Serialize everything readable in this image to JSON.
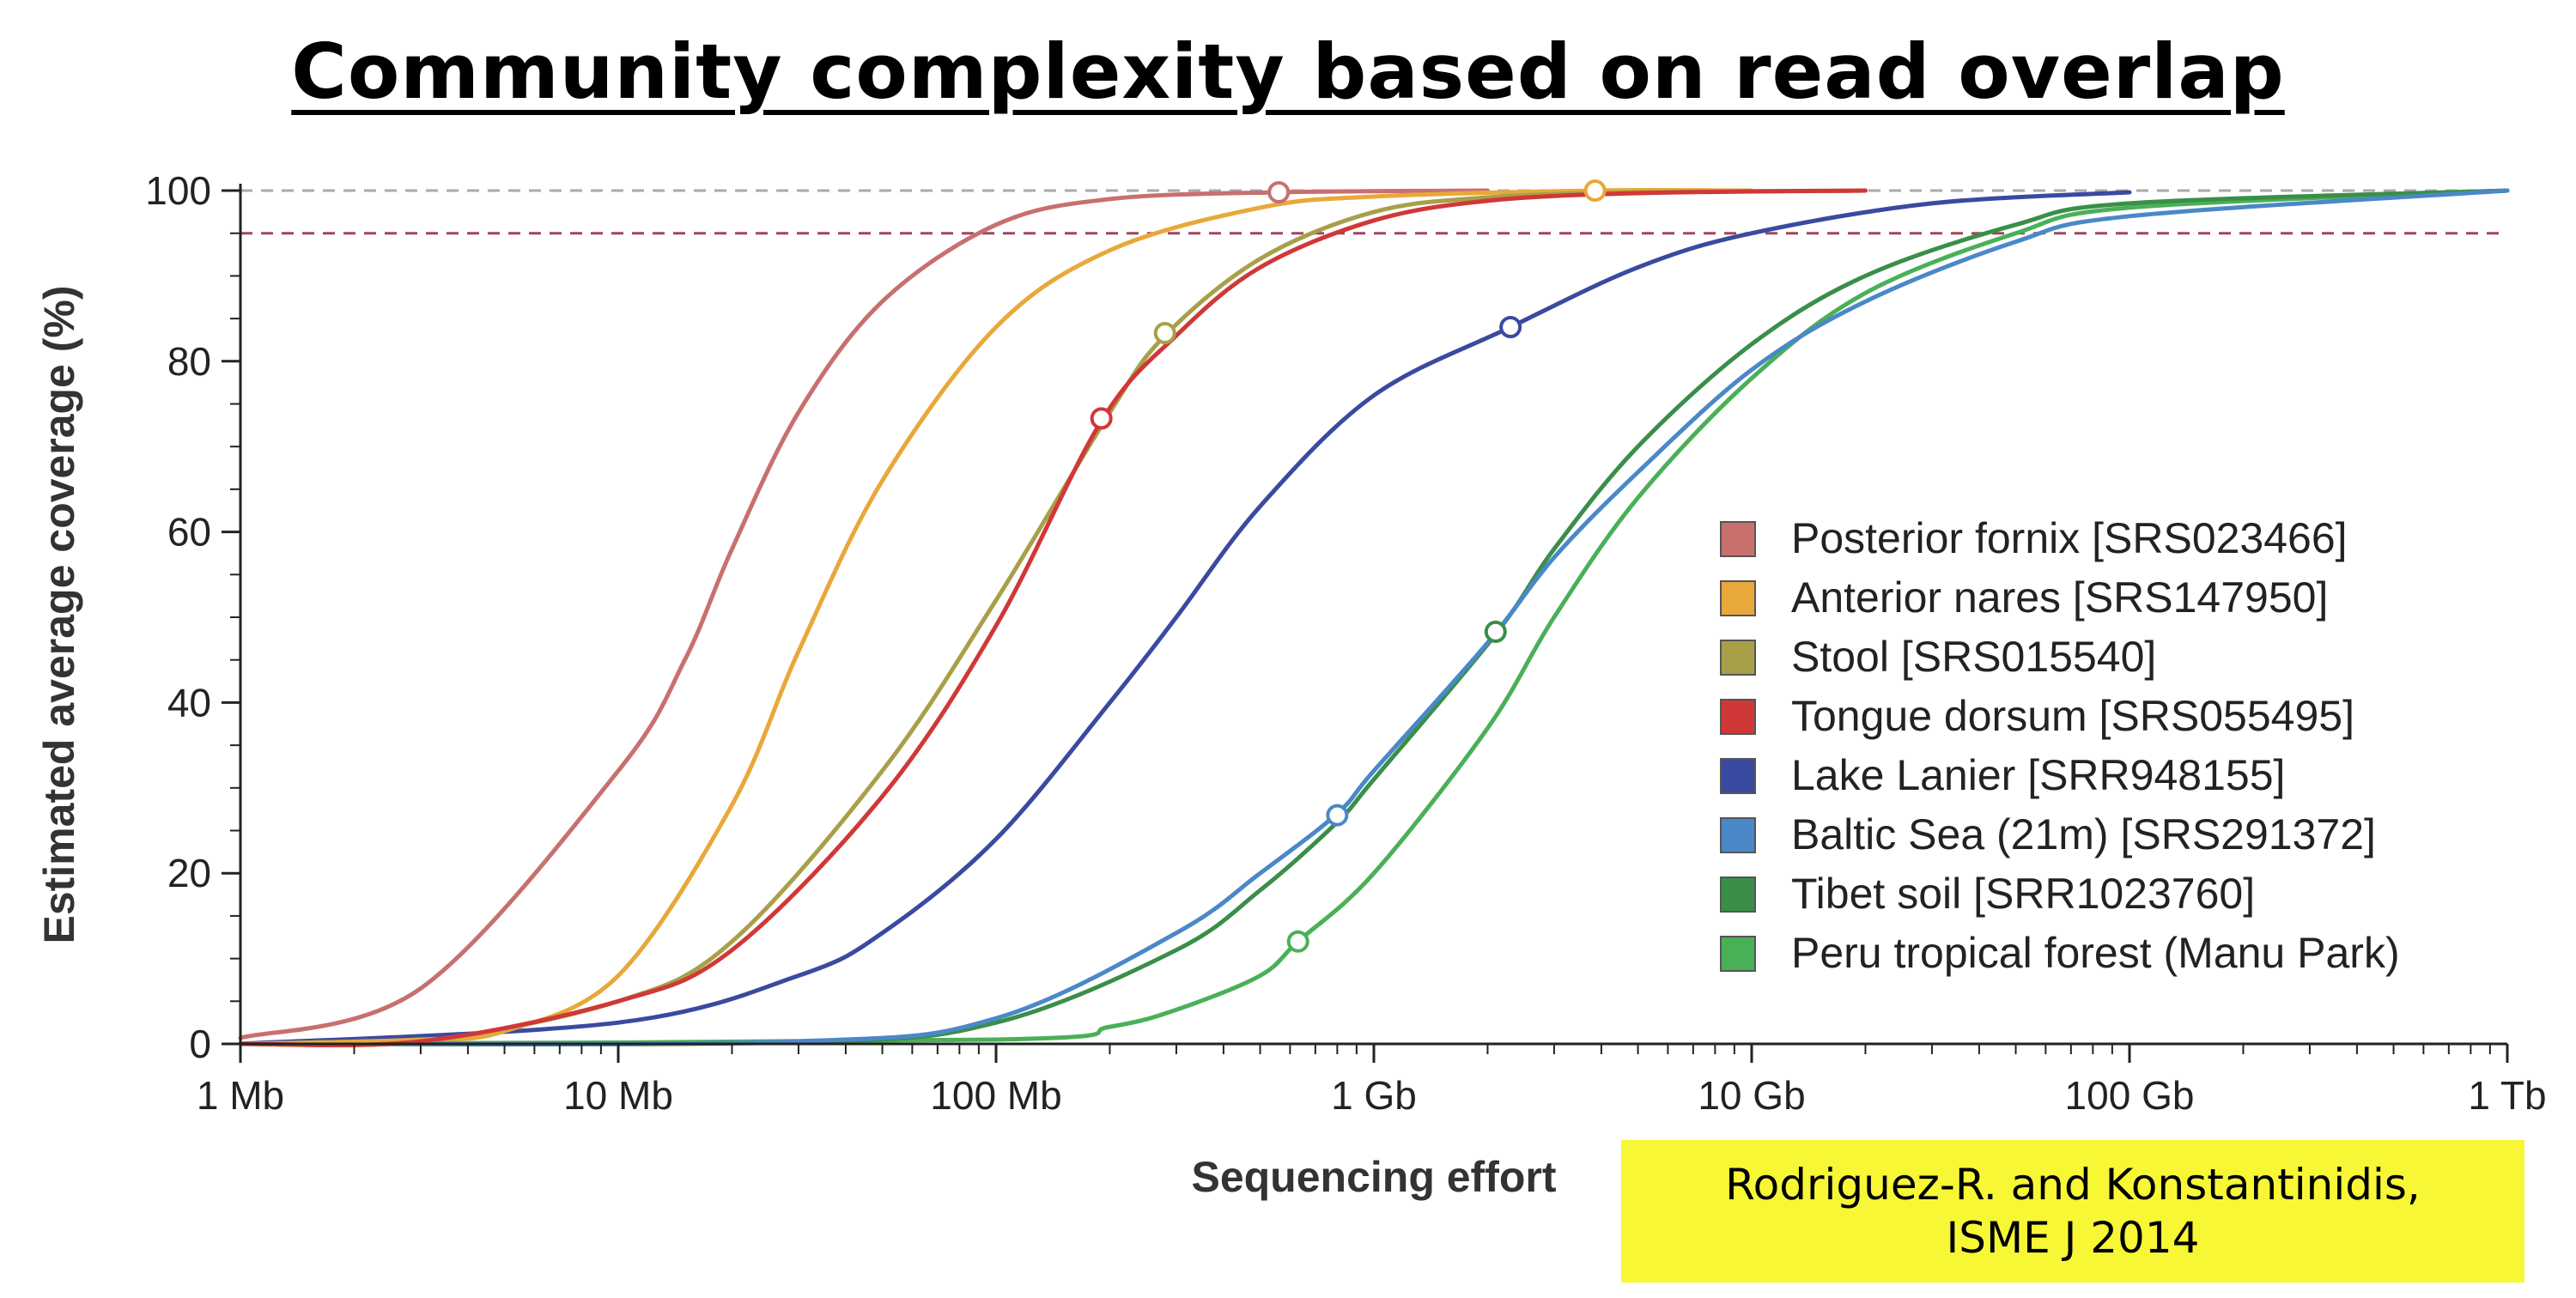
{
  "chart_data": {
    "type": "line",
    "title": "Community complexity based on read overlap",
    "xlabel": "Sequencing effort",
    "ylabel": "Estimated average coverage (%)",
    "x_scale": "log",
    "xlim_mb": [
      1,
      1000000
    ],
    "ylim": [
      0,
      100
    ],
    "x_ticks": [
      {
        "value_mb": 1,
        "label": "1 Mb"
      },
      {
        "value_mb": 10,
        "label": "10 Mb"
      },
      {
        "value_mb": 100,
        "label": "100 Mb"
      },
      {
        "value_mb": 1000,
        "label": "1 Gb"
      },
      {
        "value_mb": 10000,
        "label": "10 Gb"
      },
      {
        "value_mb": 100000,
        "label": "100 Gb"
      },
      {
        "value_mb": 1000000,
        "label": "1 Tb"
      }
    ],
    "y_ticks": [
      0,
      20,
      40,
      60,
      80,
      100
    ],
    "reference_lines": [
      {
        "y": 100,
        "color": "#aaaaaa",
        "style": "dashed"
      },
      {
        "y": 95,
        "color": "#a0465a",
        "style": "dashed"
      }
    ],
    "legend_position": "right",
    "series": [
      {
        "name": "Posterior fornix [SRS023466]",
        "color": "#c8706e",
        "x_mb": [
          1,
          3,
          10,
          15,
          20,
          30,
          50,
          100,
          200,
          560,
          2000
        ],
        "y": [
          0.7,
          6.5,
          32,
          45,
          58,
          74,
          87,
          96,
          99,
          99.8,
          100
        ],
        "markers": [
          {
            "x_mb": 560,
            "y": 99.8
          }
        ]
      },
      {
        "name": "Anterior nares [SRS147950]",
        "color": "#e8a83a",
        "x_mb": [
          1,
          3,
          5,
          10,
          20,
          30,
          50,
          100,
          200,
          500,
          1000,
          3850,
          10000
        ],
        "y": [
          0,
          0.5,
          1.5,
          8,
          28,
          46,
          66,
          84,
          93,
          98,
          99.3,
          100,
          100
        ],
        "markers": [
          {
            "x_mb": 3850,
            "y": 100
          }
        ]
      },
      {
        "name": "Stool [SRS015540]",
        "color": "#a8a048",
        "x_mb": [
          1,
          3,
          10,
          20,
          50,
          100,
          200,
          280,
          500,
          1000,
          2000,
          5000,
          20000
        ],
        "y": [
          0,
          0.3,
          5,
          12,
          32,
          52,
          74,
          83,
          92,
          97.5,
          99.2,
          99.8,
          100
        ],
        "markers": [
          {
            "x_mb": 280,
            "y": 83.3
          }
        ]
      },
      {
        "name": "Tongue dorsum [SRS055495]",
        "color": "#d03838",
        "x_mb": [
          1,
          3,
          10,
          20,
          50,
          100,
          190,
          300,
          500,
          1000,
          2000,
          5000,
          20000
        ],
        "y": [
          0,
          0.3,
          5,
          11,
          29,
          49,
          73,
          83,
          91,
          96.5,
          98.8,
          99.7,
          100
        ],
        "markers": [
          {
            "x_mb": 190,
            "y": 73.3
          }
        ]
      },
      {
        "name": "Lake Lanier [SRR948155]",
        "color": "#3a4aa0",
        "x_mb": [
          1,
          10,
          30,
          50,
          100,
          200,
          300,
          500,
          1000,
          2300,
          5000,
          10000,
          30000,
          100000
        ],
        "y": [
          0,
          2.5,
          8,
          13,
          24,
          40,
          50,
          63,
          76,
          84,
          91,
          95,
          98.5,
          99.8
        ],
        "markers": [
          {
            "x_mb": 2300,
            "y": 84
          }
        ]
      },
      {
        "name": "Baltic Sea (21m) [SRS291372]",
        "color": "#4a88c8",
        "x_mb": [
          1,
          30,
          100,
          300,
          500,
          800,
          1000,
          2000,
          3000,
          5000,
          10000,
          20000,
          50000,
          100000,
          1000000
        ],
        "y": [
          0,
          0.3,
          3,
          13,
          20,
          27,
          32,
          47,
          57,
          67,
          79,
          87,
          94,
          97,
          100
        ],
        "markers": [
          {
            "x_mb": 800,
            "y": 26.8
          }
        ]
      },
      {
        "name": "Tibet soil [SRR1023760]",
        "color": "#3a8f48",
        "x_mb": [
          1,
          30,
          100,
          300,
          500,
          800,
          1000,
          2100,
          3000,
          5000,
          10000,
          20000,
          50000,
          100000,
          1000000
        ],
        "y": [
          0,
          0.2,
          2.5,
          11,
          18,
          26,
          31,
          48,
          58,
          70,
          82,
          90,
          96,
          98.5,
          100
        ],
        "markers": [
          {
            "x_mb": 2100,
            "y": 48.3
          }
        ]
      },
      {
        "name": "Peru tropical forest (Manu Park)",
        "color": "#4ab058",
        "x_mb": [
          1,
          100,
          200,
          300,
          500,
          630,
          1000,
          2000,
          3000,
          5000,
          10000,
          20000,
          50000,
          100000,
          1000000
        ],
        "y": [
          0,
          0.5,
          2,
          4,
          8,
          12,
          20,
          37,
          50,
          64,
          78,
          88,
          95,
          98,
          100
        ],
        "markers": [
          {
            "x_mb": 630,
            "y": 12
          }
        ]
      }
    ]
  },
  "citation": {
    "line1": "Rodriguez-R. and Konstantinidis,",
    "line2": "ISME J 2014"
  }
}
